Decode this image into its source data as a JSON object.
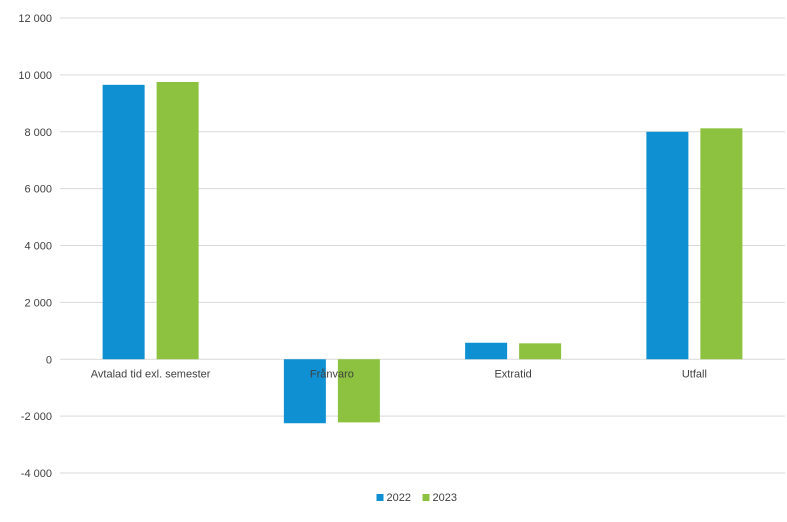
{
  "chart_data": {
    "type": "bar",
    "title": "",
    "xlabel": "",
    "ylabel": "",
    "categories": [
      "Avtalad tid exl. semester",
      "Frånvaro",
      "Extratid",
      "Utfall"
    ],
    "series": [
      {
        "name": "2022",
        "values": [
          9650,
          -2250,
          580,
          8000
        ],
        "color": "#0f90d2"
      },
      {
        "name": "2023",
        "values": [
          9750,
          -2220,
          560,
          8120
        ],
        "color": "#8cc23f"
      }
    ],
    "ylim": [
      -4000,
      12000
    ],
    "yticks": [
      -4000,
      -2000,
      0,
      2000,
      4000,
      6000,
      8000,
      10000,
      12000
    ],
    "ytick_labels": [
      "-4 000",
      "-2 000",
      "0",
      "2 000",
      "4 000",
      "6 000",
      "8 000",
      "10 000",
      "12 000"
    ],
    "grid": true,
    "legend_position": "bottom"
  },
  "colors": {
    "grid": "#d9d9d9",
    "axis_text": "#404040"
  }
}
